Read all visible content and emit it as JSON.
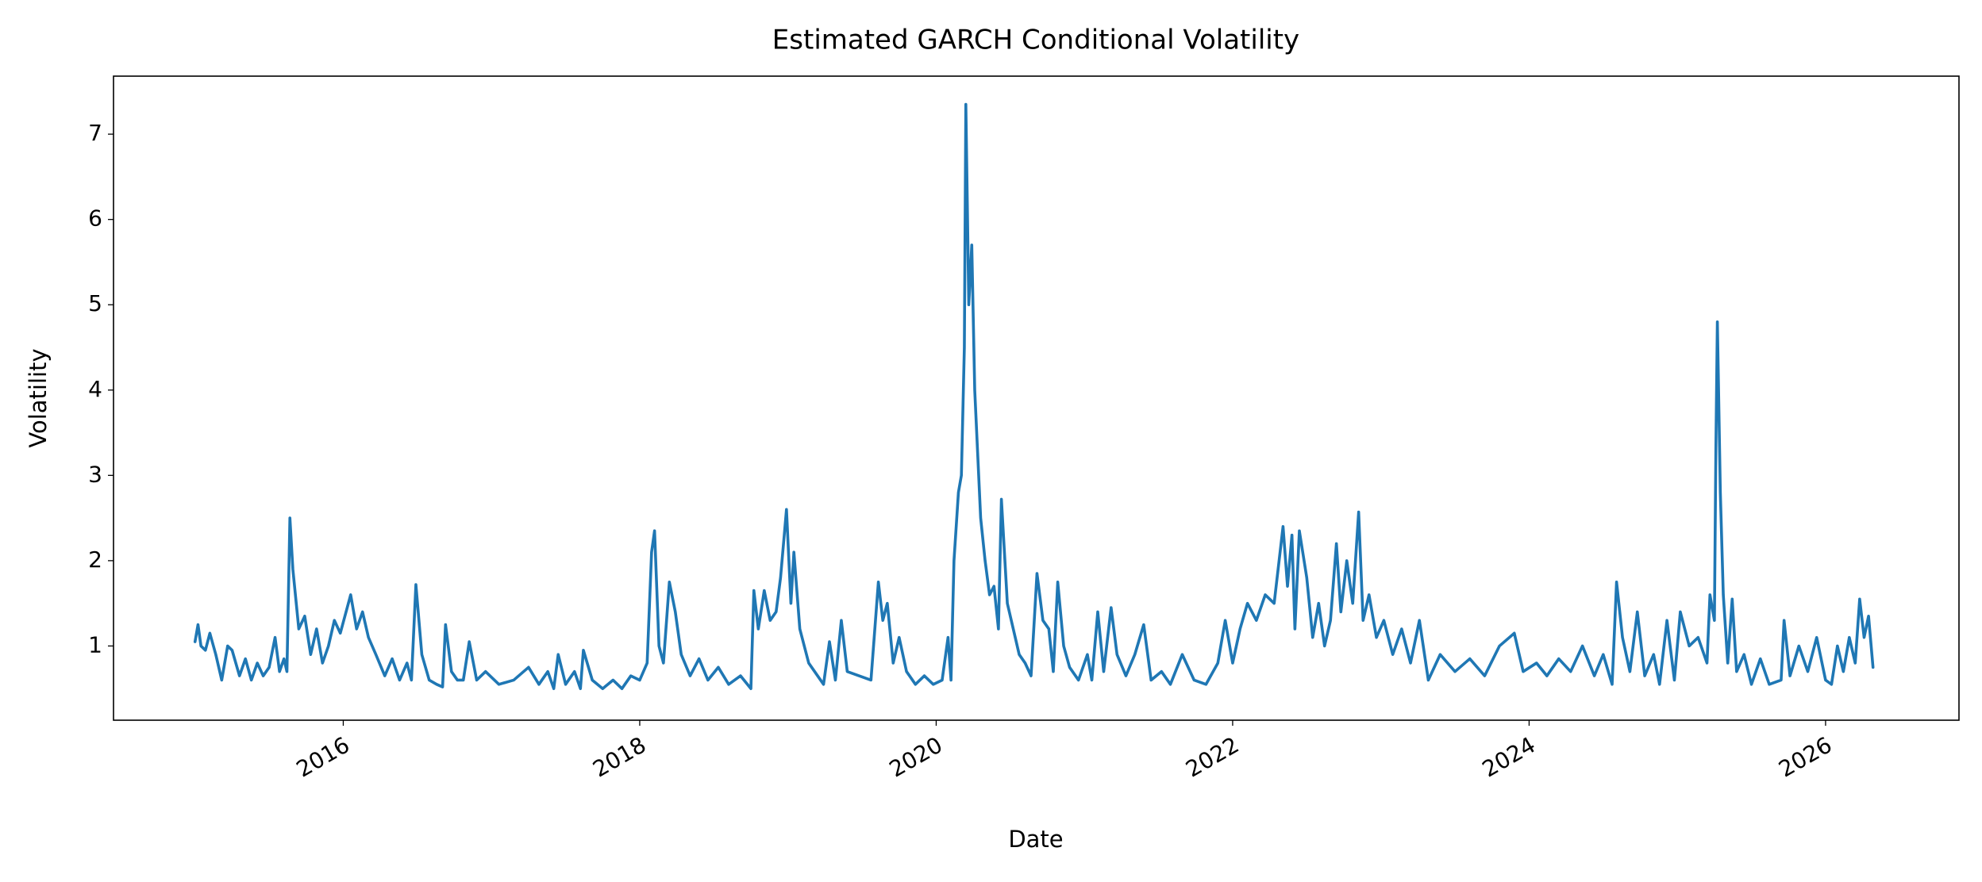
{
  "chart_data": {
    "type": "line",
    "title": "Estimated GARCH Conditional Volatility",
    "x_label": "Date",
    "y_label": "Volatility",
    "color": "#1f77b4",
    "xlim": [
      2014.45,
      2026.9
    ],
    "ylim": [
      0.13,
      7.68
    ],
    "xticks": [
      2016,
      2018,
      2020,
      2022,
      2024,
      2026
    ],
    "yticks": [
      1,
      2,
      3,
      4,
      5,
      6,
      7
    ],
    "x": [
      2015.0,
      2015.02,
      2015.04,
      2015.07,
      2015.1,
      2015.14,
      2015.18,
      2015.22,
      2015.25,
      2015.3,
      2015.34,
      2015.38,
      2015.42,
      2015.46,
      2015.5,
      2015.54,
      2015.57,
      2015.6,
      2015.62,
      2015.64,
      2015.66,
      2015.7,
      2015.74,
      2015.78,
      2015.82,
      2015.86,
      2015.9,
      2015.94,
      2015.98,
      2016.05,
      2016.09,
      2016.13,
      2016.17,
      2016.22,
      2016.28,
      2016.33,
      2016.38,
      2016.43,
      2016.46,
      2016.49,
      2016.53,
      2016.58,
      2016.63,
      2016.67,
      2016.69,
      2016.73,
      2016.77,
      2016.81,
      2016.85,
      2016.9,
      2016.96,
      2017.05,
      2017.15,
      2017.25,
      2017.32,
      2017.38,
      2017.42,
      2017.45,
      2017.5,
      2017.56,
      2017.6,
      2017.62,
      2017.68,
      2017.75,
      2017.82,
      2017.88,
      2017.94,
      2018.0,
      2018.05,
      2018.08,
      2018.1,
      2018.13,
      2018.16,
      2018.2,
      2018.24,
      2018.28,
      2018.34,
      2018.4,
      2018.46,
      2018.53,
      2018.6,
      2018.68,
      2018.75,
      2018.77,
      2018.8,
      2018.84,
      2018.88,
      2018.92,
      2018.95,
      2018.99,
      2019.02,
      2019.04,
      2019.08,
      2019.14,
      2019.2,
      2019.24,
      2019.28,
      2019.32,
      2019.36,
      2019.4,
      2019.48,
      2019.56,
      2019.61,
      2019.64,
      2019.67,
      2019.71,
      2019.75,
      2019.8,
      2019.86,
      2019.92,
      2019.98,
      2020.04,
      2020.08,
      2020.1,
      2020.12,
      2020.15,
      2020.17,
      2020.19,
      2020.2,
      2020.22,
      2020.24,
      2020.26,
      2020.3,
      2020.33,
      2020.36,
      2020.39,
      2020.42,
      2020.44,
      2020.48,
      2020.52,
      2020.56,
      2020.6,
      2020.64,
      2020.68,
      2020.72,
      2020.76,
      2020.79,
      2020.82,
      2020.86,
      2020.9,
      2020.96,
      2021.02,
      2021.05,
      2021.09,
      2021.13,
      2021.18,
      2021.22,
      2021.28,
      2021.34,
      2021.4,
      2021.45,
      2021.52,
      2021.58,
      2021.66,
      2021.74,
      2021.82,
      2021.9,
      2021.95,
      2022.0,
      2022.05,
      2022.1,
      2022.16,
      2022.22,
      2022.28,
      2022.34,
      2022.37,
      2022.4,
      2022.42,
      2022.45,
      2022.5,
      2022.54,
      2022.58,
      2022.62,
      2022.66,
      2022.7,
      2022.73,
      2022.77,
      2022.81,
      2022.85,
      2022.88,
      2022.92,
      2022.97,
      2023.02,
      2023.08,
      2023.14,
      2023.2,
      2023.26,
      2023.32,
      2023.4,
      2023.5,
      2023.6,
      2023.7,
      2023.8,
      2023.9,
      2023.96,
      2024.05,
      2024.12,
      2024.2,
      2024.28,
      2024.36,
      2024.44,
      2024.5,
      2024.56,
      2024.59,
      2024.63,
      2024.68,
      2024.73,
      2024.78,
      2024.84,
      2024.88,
      2024.93,
      2024.98,
      2025.02,
      2025.08,
      2025.14,
      2025.2,
      2025.22,
      2025.25,
      2025.26,
      2025.27,
      2025.29,
      2025.31,
      2025.34,
      2025.37,
      2025.4,
      2025.45,
      2025.5,
      2025.56,
      2025.62,
      2025.7,
      2025.72,
      2025.76,
      2025.82,
      2025.88,
      2025.94,
      2026.0,
      2026.04,
      2026.08,
      2026.12,
      2026.16,
      2026.2,
      2026.23,
      2026.26,
      2026.29,
      2026.32
    ],
    "values": [
      1.05,
      1.25,
      1.0,
      0.95,
      1.15,
      0.9,
      0.6,
      1.0,
      0.95,
      0.65,
      0.85,
      0.6,
      0.8,
      0.65,
      0.75,
      1.1,
      0.7,
      0.85,
      0.7,
      2.5,
      1.9,
      1.2,
      1.35,
      0.9,
      1.2,
      0.8,
      1.0,
      1.3,
      1.15,
      1.6,
      1.2,
      1.4,
      1.1,
      0.9,
      0.65,
      0.85,
      0.6,
      0.8,
      0.6,
      1.72,
      0.9,
      0.6,
      0.55,
      0.52,
      1.25,
      0.7,
      0.6,
      0.6,
      1.05,
      0.6,
      0.7,
      0.55,
      0.6,
      0.75,
      0.55,
      0.7,
      0.5,
      0.9,
      0.55,
      0.7,
      0.5,
      0.95,
      0.6,
      0.5,
      0.6,
      0.5,
      0.65,
      0.6,
      0.8,
      2.1,
      2.35,
      1.0,
      0.8,
      1.75,
      1.4,
      0.9,
      0.65,
      0.85,
      0.6,
      0.75,
      0.55,
      0.65,
      0.5,
      1.65,
      1.2,
      1.65,
      1.3,
      1.4,
      1.8,
      2.6,
      1.5,
      2.1,
      1.2,
      0.8,
      0.65,
      0.55,
      1.05,
      0.6,
      1.3,
      0.7,
      0.65,
      0.6,
      1.75,
      1.3,
      1.5,
      0.8,
      1.1,
      0.7,
      0.55,
      0.65,
      0.55,
      0.6,
      1.1,
      0.6,
      2.0,
      2.8,
      3.0,
      4.5,
      7.35,
      5.0,
      5.7,
      4.0,
      2.5,
      2.0,
      1.6,
      1.7,
      1.2,
      2.72,
      1.5,
      1.2,
      0.9,
      0.8,
      0.65,
      1.85,
      1.3,
      1.2,
      0.7,
      1.75,
      1.0,
      0.75,
      0.6,
      0.9,
      0.6,
      1.4,
      0.7,
      1.45,
      0.9,
      0.65,
      0.9,
      1.25,
      0.6,
      0.7,
      0.55,
      0.9,
      0.6,
      0.55,
      0.8,
      1.3,
      0.8,
      1.2,
      1.5,
      1.3,
      1.6,
      1.5,
      2.4,
      1.7,
      2.3,
      1.2,
      2.35,
      1.8,
      1.1,
      1.5,
      1.0,
      1.3,
      2.2,
      1.4,
      2.0,
      1.5,
      2.57,
      1.3,
      1.6,
      1.1,
      1.3,
      0.9,
      1.2,
      0.8,
      1.3,
      0.6,
      0.9,
      0.7,
      0.85,
      0.65,
      1.0,
      1.15,
      0.7,
      0.8,
      0.65,
      0.85,
      0.7,
      1.0,
      0.65,
      0.9,
      0.55,
      1.75,
      1.1,
      0.7,
      1.4,
      0.65,
      0.9,
      0.55,
      1.3,
      0.6,
      1.4,
      1.0,
      1.1,
      0.8,
      1.6,
      1.3,
      3.3,
      4.8,
      2.8,
      1.6,
      0.8,
      1.55,
      0.7,
      0.9,
      0.55,
      0.85,
      0.55,
      0.6,
      1.3,
      0.65,
      1.0,
      0.7,
      1.1,
      0.6,
      0.55,
      1.0,
      0.7,
      1.1,
      0.8,
      1.55,
      1.1,
      1.35,
      0.75
    ]
  }
}
